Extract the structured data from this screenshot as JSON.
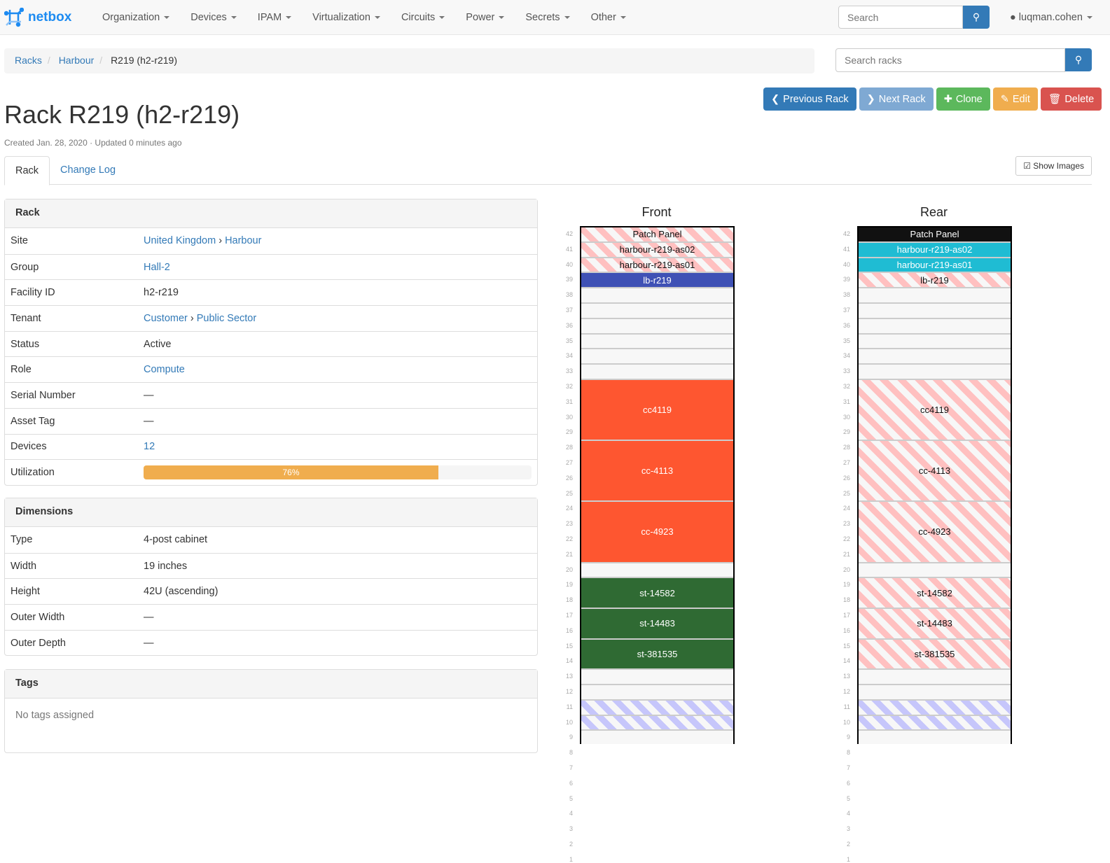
{
  "nav": {
    "brand": "netbox",
    "menu": [
      "Organization",
      "Devices",
      "IPAM",
      "Virtualization",
      "Circuits",
      "Power",
      "Secrets",
      "Other"
    ],
    "search_placeholder": "Search",
    "user": "luqman.cohen"
  },
  "breadcrumb": [
    "Racks",
    "Harbour",
    "R219 (h2-r219)"
  ],
  "rack_search_placeholder": "Search racks",
  "buttons": {
    "prev": "Previous Rack",
    "next": "Next Rack",
    "clone": "Clone",
    "edit": "Edit",
    "delete": "Delete"
  },
  "title": "Rack R219 (h2-r219)",
  "meta": "Created Jan. 28, 2020 · Updated 0 minutes ago",
  "tabs": [
    "Rack",
    "Change Log"
  ],
  "show_images": "Show Images",
  "rack_panel": {
    "title": "Rack",
    "rows": [
      {
        "k": "Site",
        "v": "United Kingdom",
        "v2": "Harbour",
        "link": true
      },
      {
        "k": "Group",
        "v": "Hall-2",
        "link": true
      },
      {
        "k": "Facility ID",
        "v": "h2-r219"
      },
      {
        "k": "Tenant",
        "v": "Customer",
        "v2": "Public Sector",
        "link": true
      },
      {
        "k": "Status",
        "v": "Active"
      },
      {
        "k": "Role",
        "v": "Compute",
        "link": true
      },
      {
        "k": "Serial Number",
        "v": "—"
      },
      {
        "k": "Asset Tag",
        "v": "—"
      },
      {
        "k": "Devices",
        "v": "12",
        "link": true
      }
    ],
    "utilization_label": "Utilization",
    "utilization": 76,
    "utilization_text": "76%"
  },
  "dimensions": {
    "title": "Dimensions",
    "rows": [
      {
        "k": "Type",
        "v": "4-post cabinet"
      },
      {
        "k": "Width",
        "v": "19 inches"
      },
      {
        "k": "Height",
        "v": "42U (ascending)"
      },
      {
        "k": "Outer Width",
        "v": "—"
      },
      {
        "k": "Outer Depth",
        "v": "—"
      }
    ]
  },
  "tags": {
    "title": "Tags",
    "empty": "No tags assigned"
  },
  "colors": {
    "primary": "#337ab7",
    "info": "#5bc0de",
    "success": "#5cb85c",
    "warning": "#f0ad4e",
    "danger": "#d9534f"
  },
  "elevations": [
    {
      "title": "Front",
      "devices": [
        {
          "name": "Patch Panel",
          "u": 42,
          "h": 1,
          "style": "reserved-red"
        },
        {
          "name": "harbour-r219-as02",
          "u": 41,
          "h": 1,
          "style": "reserved-red"
        },
        {
          "name": "harbour-r219-as01",
          "u": 40,
          "h": 1,
          "style": "reserved-red"
        },
        {
          "name": "lb-r219",
          "u": 39,
          "h": 1,
          "color": "#3f51b5",
          "fg": "#fff"
        },
        {
          "name": "cc4119",
          "u": 32,
          "h": 4,
          "color": "#fe5630",
          "fg": "#fff"
        },
        {
          "name": "cc-4113",
          "u": 28,
          "h": 4,
          "color": "#fe5630",
          "fg": "#fff"
        },
        {
          "name": "cc-4923",
          "u": 24,
          "h": 4,
          "color": "#fe5630",
          "fg": "#fff"
        },
        {
          "name": "st-14582",
          "u": 19,
          "h": 2,
          "color": "#2f6a33",
          "fg": "#fff"
        },
        {
          "name": "st-14483",
          "u": 17,
          "h": 2,
          "color": "#2f6a33",
          "fg": "#fff"
        },
        {
          "name": "st-381535",
          "u": 15,
          "h": 2,
          "color": "#2f6a33",
          "fg": "#fff"
        },
        {
          "name": "",
          "u": 11,
          "h": 1,
          "style": "reserved-blue"
        },
        {
          "name": "",
          "u": 10,
          "h": 1,
          "style": "reserved-blue"
        }
      ]
    },
    {
      "title": "Rear",
      "devices": [
        {
          "name": "Patch Panel",
          "u": 42,
          "h": 1,
          "color": "#111111",
          "fg": "#fff"
        },
        {
          "name": "harbour-r219-as02",
          "u": 41,
          "h": 1,
          "color": "#1fbcd3",
          "fg": "#fff"
        },
        {
          "name": "harbour-r219-as01",
          "u": 40,
          "h": 1,
          "color": "#1fbcd3",
          "fg": "#fff"
        },
        {
          "name": "lb-r219",
          "u": 39,
          "h": 1,
          "style": "reserved-red"
        },
        {
          "name": "cc4119",
          "u": 32,
          "h": 4,
          "style": "reserved-red"
        },
        {
          "name": "cc-4113",
          "u": 28,
          "h": 4,
          "style": "reserved-red"
        },
        {
          "name": "cc-4923",
          "u": 24,
          "h": 4,
          "style": "reserved-red"
        },
        {
          "name": "st-14582",
          "u": 19,
          "h": 2,
          "style": "reserved-red"
        },
        {
          "name": "st-14483",
          "u": 17,
          "h": 2,
          "style": "reserved-red"
        },
        {
          "name": "st-381535",
          "u": 15,
          "h": 2,
          "style": "reserved-red"
        },
        {
          "name": "",
          "u": 11,
          "h": 1,
          "style": "reserved-blue"
        },
        {
          "name": "",
          "u": 10,
          "h": 1,
          "style": "reserved-blue"
        }
      ]
    }
  ]
}
